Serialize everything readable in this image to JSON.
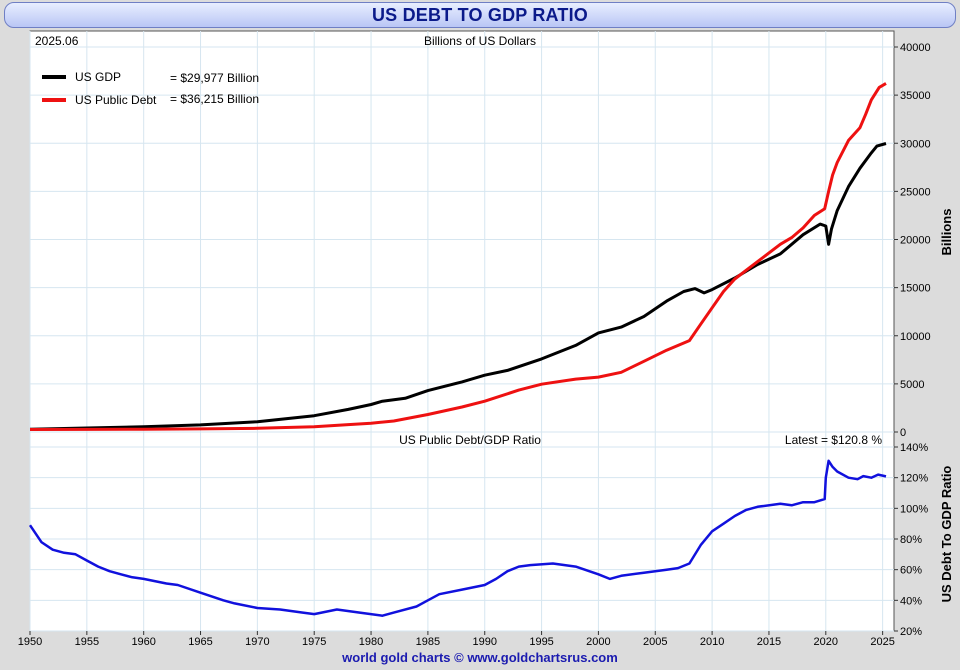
{
  "title": "US DEBT TO GDP RATIO",
  "footer": "world gold charts © www.goldchartsrus.com",
  "colors": {
    "gdp": "#000000",
    "debt": "#ee1111",
    "ratio": "#1111dd",
    "title": "#0b1a8a",
    "grid": "#d6e6f0"
  },
  "chart_data": [
    {
      "type": "line",
      "date_label": "2025.06",
      "units_label": "Billions of US Dollars",
      "ylabel": "Billions",
      "xlim": [
        1950,
        2026
      ],
      "ylim": [
        0,
        40000
      ],
      "y_ticks": [
        "0",
        "5000",
        "10000",
        "15000",
        "20000",
        "25000",
        "30000",
        "35000",
        "40000"
      ],
      "grid": true,
      "legend_position": "top-left",
      "legend": [
        {
          "name": "US GDP",
          "value_text": "= $29,977 Billion"
        },
        {
          "name": "US Public Debt",
          "value_text": "= $36,215 Billion"
        }
      ],
      "series": [
        {
          "name": "US GDP",
          "points": [
            [
              1950,
              290
            ],
            [
              1955,
              420
            ],
            [
              1960,
              540
            ],
            [
              1965,
              740
            ],
            [
              1970,
              1070
            ],
            [
              1975,
              1690
            ],
            [
              1978,
              2350
            ],
            [
              1980,
              2860
            ],
            [
              1981,
              3200
            ],
            [
              1983,
              3500
            ],
            [
              1985,
              4300
            ],
            [
              1988,
              5200
            ],
            [
              1990,
              5900
            ],
            [
              1992,
              6400
            ],
            [
              1995,
              7600
            ],
            [
              1998,
              9000
            ],
            [
              2000,
              10300
            ],
            [
              2002,
              10900
            ],
            [
              2004,
              12000
            ],
            [
              2006,
              13600
            ],
            [
              2007.5,
              14600
            ],
            [
              2008.5,
              14900
            ],
            [
              2009.3,
              14450
            ],
            [
              2010,
              14800
            ],
            [
              2012,
              16000
            ],
            [
              2014,
              17400
            ],
            [
              2016,
              18500
            ],
            [
              2018,
              20500
            ],
            [
              2019.5,
              21600
            ],
            [
              2020.0,
              21400
            ],
            [
              2020.25,
              19500
            ],
            [
              2020.5,
              21100
            ],
            [
              2021,
              23000
            ],
            [
              2022,
              25500
            ],
            [
              2023,
              27400
            ],
            [
              2024,
              29000
            ],
            [
              2024.5,
              29700
            ],
            [
              2025.3,
              29977
            ]
          ]
        },
        {
          "name": "US Public Debt",
          "points": [
            [
              1950,
              257
            ],
            [
              1955,
              274
            ],
            [
              1960,
              290
            ],
            [
              1965,
              320
            ],
            [
              1970,
              380
            ],
            [
              1975,
              540
            ],
            [
              1978,
              770
            ],
            [
              1980,
              910
            ],
            [
              1982,
              1140
            ],
            [
              1985,
              1820
            ],
            [
              1988,
              2600
            ],
            [
              1990,
              3200
            ],
            [
              1993,
              4350
            ],
            [
              1995,
              4970
            ],
            [
              1998,
              5500
            ],
            [
              2000,
              5700
            ],
            [
              2002,
              6200
            ],
            [
              2004,
              7350
            ],
            [
              2006,
              8500
            ],
            [
              2008,
              9500
            ],
            [
              2009,
              11200
            ],
            [
              2010,
              12900
            ],
            [
              2011,
              14600
            ],
            [
              2012,
              15900
            ],
            [
              2014,
              17700
            ],
            [
              2016,
              19500
            ],
            [
              2017,
              20200
            ],
            [
              2018,
              21200
            ],
            [
              2019,
              22500
            ],
            [
              2019.9,
              23200
            ],
            [
              2020.25,
              25000
            ],
            [
              2020.6,
              26700
            ],
            [
              2021,
              28000
            ],
            [
              2022,
              30300
            ],
            [
              2023,
              31600
            ],
            [
              2023.5,
              33000
            ],
            [
              2024,
              34500
            ],
            [
              2024.7,
              35800
            ],
            [
              2025.3,
              36215
            ]
          ]
        }
      ]
    },
    {
      "type": "line",
      "title": "US Public Debt/GDP Ratio",
      "latest_label": "Latest = $120.8 %",
      "ylabel": "US Debt To GDP Ratio",
      "xlabel": "",
      "xlim": [
        1950,
        2026
      ],
      "ylim": [
        20,
        140
      ],
      "y_ticks": [
        "20%",
        "40%",
        "60%",
        "80%",
        "100%",
        "120%",
        "140%"
      ],
      "x_ticks": [
        "1950",
        "1955",
        "1960",
        "1965",
        "1970",
        "1975",
        "1980",
        "1985",
        "1990",
        "1995",
        "2000",
        "2005",
        "2010",
        "2015",
        "2020",
        "2025"
      ],
      "grid": true,
      "series": [
        {
          "name": "US Public Debt/GDP Ratio",
          "points": [
            [
              1950,
              89
            ],
            [
              1951,
              78
            ],
            [
              1952,
              73
            ],
            [
              1953,
              71
            ],
            [
              1954,
              70
            ],
            [
              1955,
              66
            ],
            [
              1956,
              62
            ],
            [
              1957,
              59
            ],
            [
              1958,
              57
            ],
            [
              1959,
              55
            ],
            [
              1960,
              54
            ],
            [
              1962,
              51
            ],
            [
              1963,
              50
            ],
            [
              1965,
              45
            ],
            [
              1967,
              40
            ],
            [
              1968,
              38
            ],
            [
              1970,
              35
            ],
            [
              1972,
              34
            ],
            [
              1974,
              32
            ],
            [
              1975,
              31
            ],
            [
              1977,
              34
            ],
            [
              1979,
              32
            ],
            [
              1981,
              30
            ],
            [
              1982,
              32
            ],
            [
              1984,
              36
            ],
            [
              1985,
              40
            ],
            [
              1986,
              44
            ],
            [
              1988,
              47
            ],
            [
              1990,
              50
            ],
            [
              1991,
              54
            ],
            [
              1992,
              59
            ],
            [
              1993,
              62
            ],
            [
              1994,
              63
            ],
            [
              1996,
              64
            ],
            [
              1998,
              62
            ],
            [
              2000,
              57
            ],
            [
              2001,
              54
            ],
            [
              2002,
              56
            ],
            [
              2004,
              58
            ],
            [
              2006,
              60
            ],
            [
              2007,
              61
            ],
            [
              2008,
              64
            ],
            [
              2009,
              76
            ],
            [
              2010,
              85
            ],
            [
              2011,
              90
            ],
            [
              2012,
              95
            ],
            [
              2013,
              99
            ],
            [
              2014,
              101
            ],
            [
              2016,
              103
            ],
            [
              2017,
              102
            ],
            [
              2018,
              104
            ],
            [
              2019,
              104
            ],
            [
              2019.9,
              106
            ],
            [
              2020.0,
              120
            ],
            [
              2020.25,
              131
            ],
            [
              2020.6,
              127
            ],
            [
              2021,
              124
            ],
            [
              2022,
              120
            ],
            [
              2022.8,
              119
            ],
            [
              2023.3,
              121
            ],
            [
              2024,
              120
            ],
            [
              2024.6,
              122
            ],
            [
              2025.3,
              120.8
            ]
          ]
        }
      ]
    }
  ]
}
